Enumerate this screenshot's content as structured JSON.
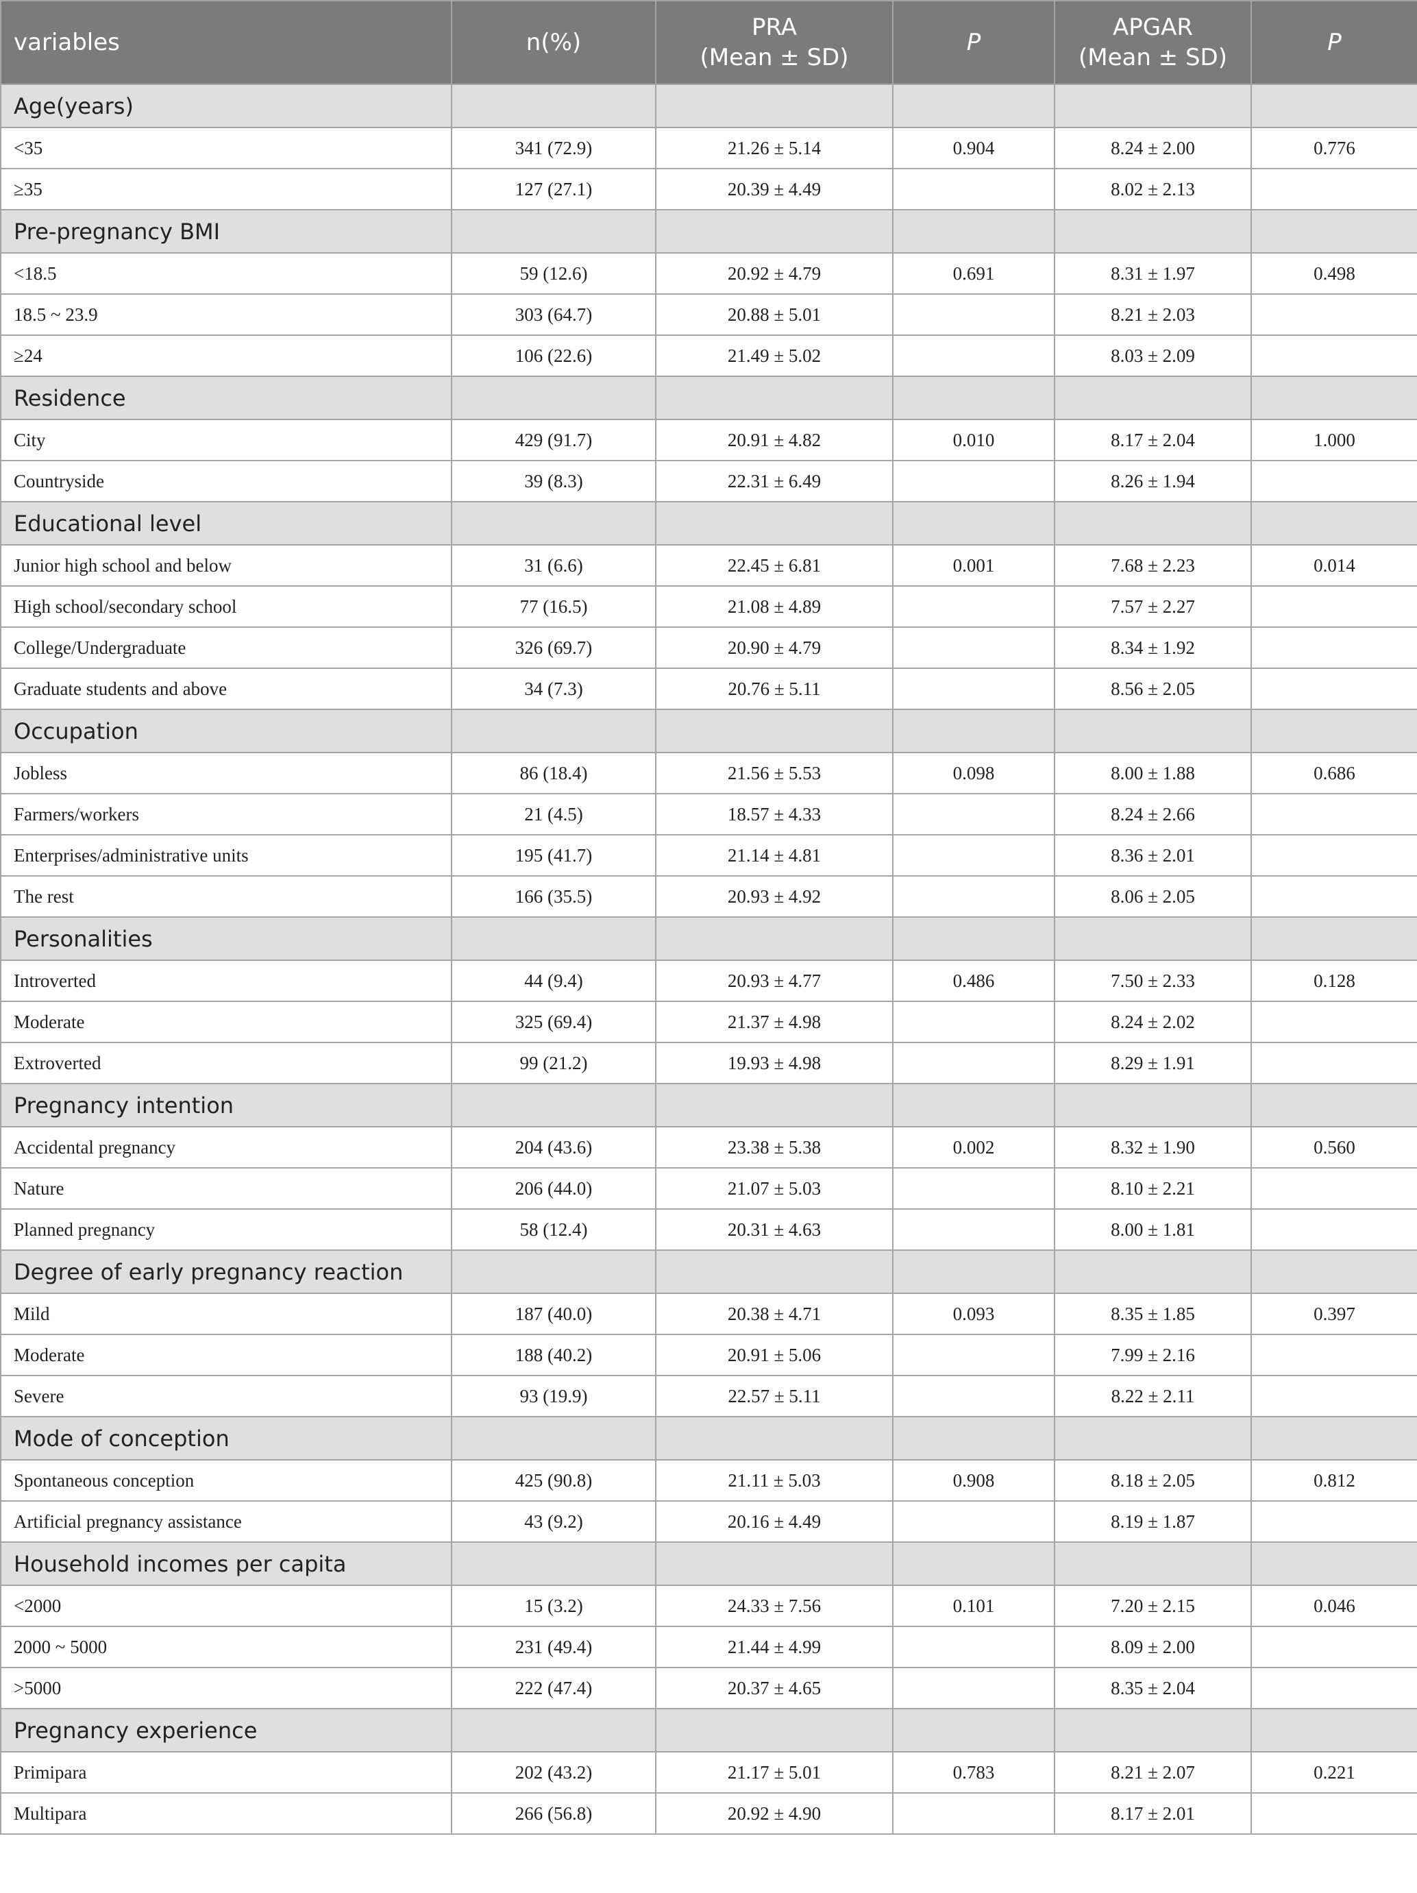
{
  "header": {
    "variables": "variables",
    "n": "n(%)",
    "pra": "PRA",
    "pra_sub": "(Mean ± SD)",
    "p1": "P",
    "apgar": "APGAR",
    "apgar_sub": "(Mean ± SD)",
    "p2": "P"
  },
  "groups": [
    {
      "label": "Age(years)",
      "rows": [
        {
          "variable": "<35",
          "n": "341 (72.9)",
          "pra": "21.26 ± 5.14",
          "pra_p": "0.904",
          "apgar": "8.24 ± 2.00",
          "apgar_p": "0.776"
        },
        {
          "variable": "≥35",
          "n": "127 (27.1)",
          "pra": "20.39 ± 4.49",
          "apgar": "8.02 ± 2.13"
        }
      ]
    },
    {
      "label": "Pre-pregnancy BMI",
      "rows": [
        {
          "variable": "<18.5",
          "n": "59 (12.6)",
          "pra": "20.92 ± 4.79",
          "pra_p": "0.691",
          "apgar": "8.31 ± 1.97",
          "apgar_p": "0.498"
        },
        {
          "variable": "18.5 ~ 23.9",
          "n": "303 (64.7)",
          "pra": "20.88 ± 5.01",
          "apgar": "8.21 ± 2.03"
        },
        {
          "variable": "≥24",
          "n": "106 (22.6)",
          "pra": "21.49 ± 5.02",
          "apgar": "8.03 ± 2.09"
        }
      ]
    },
    {
      "label": "Residence",
      "rows": [
        {
          "variable": "City",
          "n": "429 (91.7)",
          "pra": "20.91 ± 4.82",
          "pra_p": "0.010",
          "apgar": "8.17 ± 2.04",
          "apgar_p": "1.000"
        },
        {
          "variable": "Countryside",
          "n": "39 (8.3)",
          "pra": "22.31 ± 6.49",
          "apgar": "8.26 ± 1.94"
        }
      ]
    },
    {
      "label": "Educational level",
      "rows": [
        {
          "variable": "Junior high school and below",
          "n": "31 (6.6)",
          "pra": "22.45 ± 6.81",
          "pra_p": "0.001",
          "apgar": "7.68 ± 2.23",
          "apgar_p": "0.014"
        },
        {
          "variable": "High school/secondary school",
          "n": "77 (16.5)",
          "pra": "21.08 ± 4.89",
          "apgar": "7.57 ± 2.27"
        },
        {
          "variable": "College/Undergraduate",
          "n": "326 (69.7)",
          "pra": "20.90 ± 4.79",
          "apgar": "8.34 ± 1.92"
        },
        {
          "variable": "Graduate students and above",
          "n": "34 (7.3)",
          "pra": "20.76 ± 5.11",
          "apgar": "8.56 ± 2.05"
        }
      ]
    },
    {
      "label": "Occupation",
      "rows": [
        {
          "variable": "Jobless",
          "n": "86 (18.4)",
          "pra": "21.56 ± 5.53",
          "pra_p": "0.098",
          "apgar": "8.00 ± 1.88",
          "apgar_p": "0.686"
        },
        {
          "variable": "Farmers/workers",
          "n": "21 (4.5)",
          "pra": "18.57 ± 4.33",
          "apgar": "8.24 ± 2.66"
        },
        {
          "variable": "Enterprises/administrative units",
          "n": "195 (41.7)",
          "pra": "21.14 ± 4.81",
          "apgar": "8.36 ± 2.01"
        },
        {
          "variable": "The rest",
          "n": "166 (35.5)",
          "pra": "20.93 ± 4.92",
          "apgar": "8.06 ± 2.05"
        }
      ]
    },
    {
      "label": "Personalities",
      "rows": [
        {
          "variable": "Introverted",
          "n": "44 (9.4)",
          "pra": "20.93 ± 4.77",
          "pra_p": "0.486",
          "apgar": "7.50 ± 2.33",
          "apgar_p": "0.128"
        },
        {
          "variable": "Moderate",
          "n": "325 (69.4)",
          "pra": "21.37 ± 4.98",
          "apgar": "8.24 ± 2.02"
        },
        {
          "variable": "Extroverted",
          "n": "99 (21.2)",
          "pra": "19.93 ± 4.98",
          "apgar": "8.29 ± 1.91"
        }
      ]
    },
    {
      "label": "Pregnancy intention",
      "rows": [
        {
          "variable": "Accidental pregnancy",
          "n": "204 (43.6)",
          "pra": "23.38 ± 5.38",
          "pra_p": "0.002",
          "apgar": "8.32 ± 1.90",
          "apgar_p": "0.560"
        },
        {
          "variable": "Nature",
          "n": "206 (44.0)",
          "pra": "21.07 ± 5.03",
          "apgar": "8.10 ± 2.21"
        },
        {
          "variable": "Planned pregnancy",
          "n": "58 (12.4)",
          "pra": "20.31 ± 4.63",
          "apgar": "8.00 ± 1.81"
        }
      ]
    },
    {
      "label": "Degree of early pregnancy reaction",
      "rows": [
        {
          "variable": "Mild",
          "n": "187 (40.0)",
          "pra": "20.38 ± 4.71",
          "pra_p": "0.093",
          "apgar": "8.35 ± 1.85",
          "apgar_p": "0.397"
        },
        {
          "variable": "Moderate",
          "n": "188 (40.2)",
          "pra": "20.91 ± 5.06",
          "apgar": "7.99 ± 2.16"
        },
        {
          "variable": "Severe",
          "n": "93 (19.9)",
          "pra": "22.57 ± 5.11",
          "apgar": "8.22 ± 2.11"
        }
      ]
    },
    {
      "label": "Mode of conception",
      "rows": [
        {
          "variable": "Spontaneous conception",
          "n": "425 (90.8)",
          "pra": "21.11 ± 5.03",
          "pra_p": "0.908",
          "apgar": "8.18 ± 2.05",
          "apgar_p": "0.812"
        },
        {
          "variable": "Artificial pregnancy assistance",
          "n": "43 (9.2)",
          "pra": "20.16 ± 4.49",
          "apgar": "8.19 ± 1.87"
        }
      ]
    },
    {
      "label": "Household incomes per capita",
      "rows": [
        {
          "variable": "<2000",
          "n": "15 (3.2)",
          "pra": "24.33 ± 7.56",
          "pra_p": "0.101",
          "apgar": "7.20 ± 2.15",
          "apgar_p": "0.046"
        },
        {
          "variable": "2000 ~ 5000",
          "n": "231 (49.4)",
          "pra": "21.44 ± 4.99",
          "apgar": "8.09 ± 2.00"
        },
        {
          "variable": ">5000",
          "n": "222 (47.4)",
          "pra": "20.37 ± 4.65",
          "apgar": "8.35 ± 2.04"
        }
      ]
    },
    {
      "label": "Pregnancy experience",
      "rows": [
        {
          "variable": "Primipara",
          "n": "202 (43.2)",
          "pra": "21.17 ± 5.01",
          "pra_p": "0.783",
          "apgar": "8.21 ± 2.07",
          "apgar_p": "0.221"
        },
        {
          "variable": "Multipara",
          "n": "266 (56.8)",
          "pra": "20.92 ± 4.90",
          "apgar": "8.17 ± 2.01"
        }
      ]
    }
  ]
}
